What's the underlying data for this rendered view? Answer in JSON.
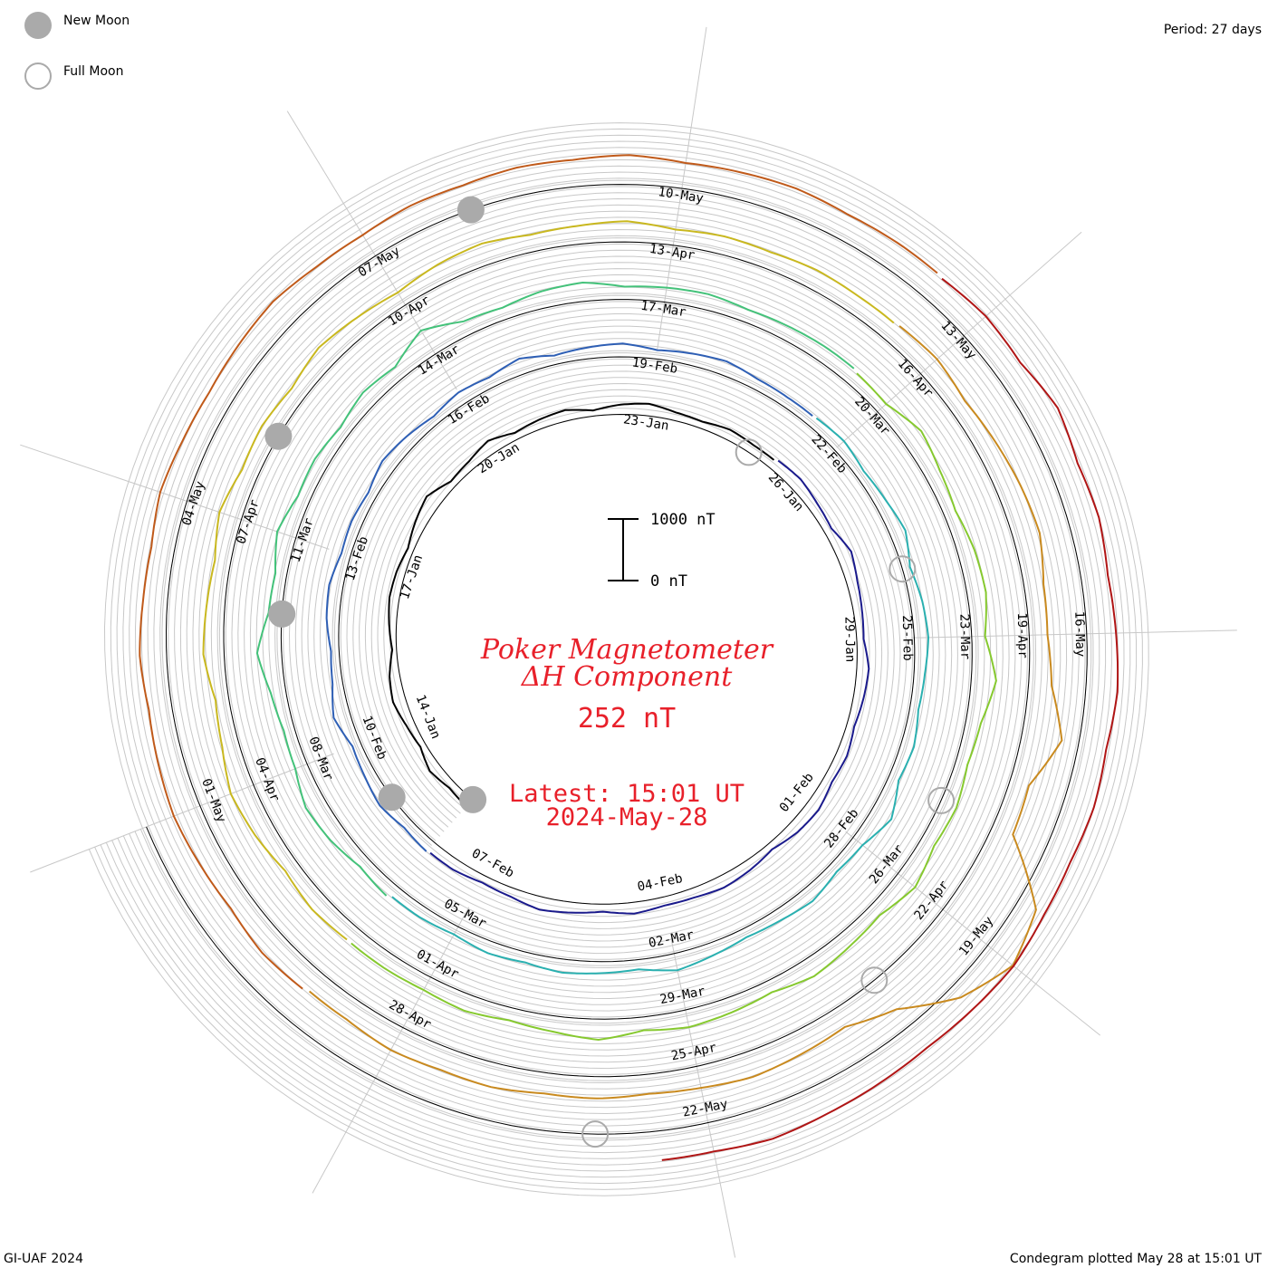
{
  "legend": {
    "new_moon": "New Moon",
    "full_moon": "Full Moon"
  },
  "period_label": "Period: 27 days",
  "footer_left": "GI-UAF 2024",
  "footer_right": "Condegram plotted May 28 at 15:01 UT",
  "center": {
    "title_line1": "Poker Magnetometer",
    "title_line2": "ΔH Component",
    "value": "252 nT",
    "latest_line1": "Latest: 15:01 UT",
    "latest_line2": "2024-May-28"
  },
  "scale_bar": {
    "top_label": "1000 nT",
    "bottom_label": "0 nT",
    "range_nT": [
      0,
      1000
    ]
  },
  "chart_data": {
    "type": "line",
    "subtype": "spiral condegram",
    "period_days": 27,
    "start_date": "2024-01-12",
    "end_date": "2024-05-28",
    "grid": true,
    "colors": [
      "#000000",
      "#1a1a8c",
      "#2e5fb5",
      "#2ab0b0",
      "#44c27a",
      "#86c92f",
      "#c9b81f",
      "#c98a1f",
      "#c05a1a",
      "#b01515"
    ],
    "series": [
      {
        "name": "",
        "values": [
          152,
          120,
          185,
          94,
          140,
          210,
          165,
          70,
          118,
          160,
          142,
          96,
          180,
          250,
          105,
          138,
          220,
          112,
          150,
          176,
          90,
          158,
          196,
          132,
          110,
          168,
          140
        ]
      },
      {
        "name": "",
        "values": [
          176,
          206,
          158,
          128,
          246,
          176,
          140,
          112,
          196,
          166,
          124,
          176,
          148,
          216,
          186,
          106,
          162,
          196,
          152,
          138,
          182,
          122,
          168,
          212,
          144,
          118,
          174
        ]
      },
      {
        "name": "",
        "values": [
          196,
          164,
          238,
          184,
          142,
          274,
          166,
          130,
          204,
          226,
          152,
          178,
          144,
          240,
          196,
          132,
          206,
          170,
          258,
          146,
          184,
          216,
          144,
          190,
          232,
          170,
          158
        ]
      },
      {
        "name": "",
        "values": [
          170,
          210,
          144,
          186,
          256,
          126,
          196,
          230,
          176,
          142,
          214,
          170,
          352,
          196,
          156,
          238,
          182,
          146,
          206,
          276,
          156,
          188,
          220,
          166,
          200,
          142,
          184
        ]
      },
      {
        "name": "",
        "values": [
          232,
          186,
          284,
          334,
          206,
          176,
          246,
          396,
          216,
          186,
          320,
          206,
          236,
          176,
          266,
          216,
          448,
          236,
          196,
          276,
          306,
          206,
          236,
          256,
          206,
          226,
          246
        ]
      },
      {
        "name": "",
        "values": [
          216,
          186,
          350,
          256,
          196,
          276,
          306,
          216,
          406,
          246,
          196,
          276,
          236,
          356,
          216,
          256,
          306,
          196,
          246,
          286,
          216,
          336,
          256,
          206,
          276,
          236,
          256
        ]
      },
      {
        "name": "",
        "values": [
          256,
          296,
          236,
          336,
          396,
          276,
          216,
          336,
          296,
          256,
          376,
          276,
          316,
          256,
          356,
          296,
          236,
          316,
          356,
          276,
          296,
          336,
          256,
          296,
          276,
          316,
          296
        ]
      },
      {
        "name": "",
        "values": [
          316,
          356,
          276,
          336,
          396,
          436,
          316,
          296,
          376,
          656,
          316,
          356,
          1256,
          1456,
          1156,
          596,
          336,
          376,
          416,
          356,
          316,
          356,
          336,
          396,
          376,
          416,
          356
        ]
      },
      {
        "name": "",
        "values": [
          396,
          436,
          376,
          416,
          456,
          416,
          376,
          436,
          396,
          376,
          456,
          416,
          396,
          436,
          476,
          416,
          396,
          436,
          416,
          456,
          436,
          476,
          416,
          436,
          456,
          416,
          436
        ]
      },
      {
        "name": "",
        "values": [
          416,
          476,
          436,
          556,
          456,
          496,
          436,
          476,
          516,
          456,
          496,
          456,
          476,
          536,
          496,
          456,
          476,
          496,
          536,
          476
        ]
      }
    ],
    "date_labels": [
      [
        "14-Jan",
        "17-Jan",
        "20-Jan",
        "23-Jan",
        "26-Jan",
        "29-Jan",
        "01-Feb",
        "04-Feb",
        "07-Feb"
      ],
      [
        "10-Feb",
        "13-Feb",
        "16-Feb",
        "19-Feb",
        "22-Feb",
        "25-Feb",
        "28-Feb",
        "02-Mar",
        "05-Mar"
      ],
      [
        "08-Mar",
        "11-Mar",
        "14-Mar",
        "17-Mar",
        "20-Mar",
        "23-Mar",
        "26-Mar",
        "29-Mar",
        "01-Apr"
      ],
      [
        "04-Apr",
        "07-Apr",
        "10-Apr",
        "13-Apr",
        "16-Apr",
        "19-Apr",
        "22-Apr",
        "25-Apr",
        "28-Apr"
      ],
      [
        "01-May",
        "04-May",
        "07-May",
        "10-May",
        "13-May",
        "16-May",
        "19-May",
        "22-May"
      ]
    ],
    "new_moons_dates": [
      "2024-01-11",
      "2024-02-09",
      "2024-03-10",
      "2024-04-08",
      "2024-05-08"
    ],
    "full_moons_dates": [
      "2024-01-25",
      "2024-02-24",
      "2024-03-25",
      "2024-04-23",
      "2024-05-23"
    ]
  }
}
